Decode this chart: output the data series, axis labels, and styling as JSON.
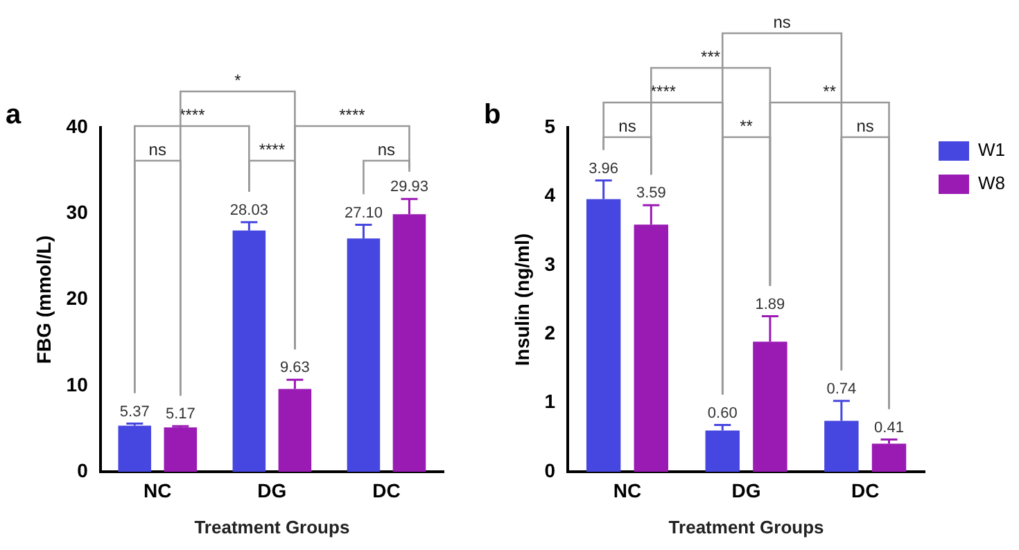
{
  "chart_data": [
    {
      "type": "bar",
      "title": "a",
      "categories": [
        "NC",
        "DG",
        "DC"
      ],
      "xlabel": "Treatment Groups",
      "ylabel": "FBG (mmol/L)",
      "ylim": [
        0,
        40
      ],
      "yticks": [
        0,
        10,
        20,
        30,
        40
      ],
      "grid": false,
      "legend": false,
      "series": [
        {
          "color": "#4646e0",
          "values": [
            5.37,
            28.03,
            27.1
          ],
          "errors": [
            [
              5.37,
              5.6
            ],
            [
              28.03,
              29.0
            ],
            [
              27.1,
              28.7
            ]
          ],
          "value_labels": [
            "5.37",
            "28.03",
            "27.10"
          ]
        },
        {
          "color": "#9a1ab4",
          "values": [
            5.17,
            9.63,
            29.93
          ],
          "errors": [
            [
              5.17,
              5.3
            ],
            [
              9.63,
              10.7
            ],
            [
              29.93,
              31.7
            ]
          ],
          "value_labels": [
            "5.17",
            "9.63",
            "29.93"
          ]
        }
      ],
      "annotations": [
        "ns",
        "****",
        "ns",
        "****",
        "****",
        "*"
      ]
    },
    {
      "type": "bar",
      "title": "b",
      "categories": [
        "NC",
        "DG",
        "DC"
      ],
      "xlabel": "Treatment Groups",
      "ylabel": "Insulin (ng/ml)",
      "ylim": [
        0,
        5
      ],
      "yticks": [
        0,
        1,
        2,
        3,
        4,
        5
      ],
      "grid": false,
      "legend": "right",
      "series": [
        {
          "name": "W1",
          "color": "#4646e0",
          "values": [
            3.96,
            0.6,
            0.74
          ],
          "errors": [
            [
              3.96,
              4.23
            ],
            [
              0.6,
              0.68
            ],
            [
              0.74,
              1.03
            ]
          ],
          "value_labels": [
            "3.96",
            "0.60",
            "0.74"
          ]
        },
        {
          "name": "W8",
          "color": "#9a1ab4",
          "values": [
            3.59,
            1.89,
            0.41
          ],
          "errors": [
            [
              3.59,
              3.87
            ],
            [
              1.89,
              2.26
            ],
            [
              0.41,
              0.47
            ]
          ],
          "value_labels": [
            "3.59",
            "1.89",
            "0.41"
          ]
        }
      ],
      "annotations": [
        "ns",
        "**",
        "ns",
        "****",
        "**",
        "***",
        "ns"
      ]
    }
  ]
}
